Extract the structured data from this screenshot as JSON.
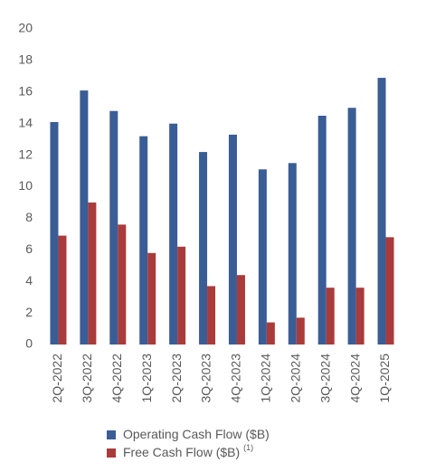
{
  "chart_data": {
    "type": "bar",
    "categories": [
      "2Q-2022",
      "3Q-2022",
      "4Q-2022",
      "1Q-2023",
      "2Q-2023",
      "3Q-2023",
      "4Q-2023",
      "1Q-2024",
      "2Q-2024",
      "3Q-2024",
      "4Q-2024",
      "1Q-2025"
    ],
    "series": [
      {
        "name": "Operating Cash Flow ($B)",
        "color": "#3a5d96",
        "values": [
          14.1,
          16.1,
          14.8,
          13.2,
          14.0,
          12.2,
          13.3,
          11.1,
          11.5,
          14.5,
          15.0,
          16.9
        ]
      },
      {
        "name": "Free Cash Flow ($B)",
        "footnote_marker": "(1)",
        "color": "#a93b3b",
        "values": [
          6.9,
          9.0,
          7.6,
          5.8,
          6.2,
          3.7,
          4.4,
          1.4,
          1.7,
          3.6,
          3.6,
          6.8
        ]
      }
    ],
    "ylim": [
      0,
      20
    ],
    "yticks": [
      0,
      2,
      4,
      6,
      8,
      10,
      12,
      14,
      16,
      18,
      20
    ],
    "grid": false
  }
}
